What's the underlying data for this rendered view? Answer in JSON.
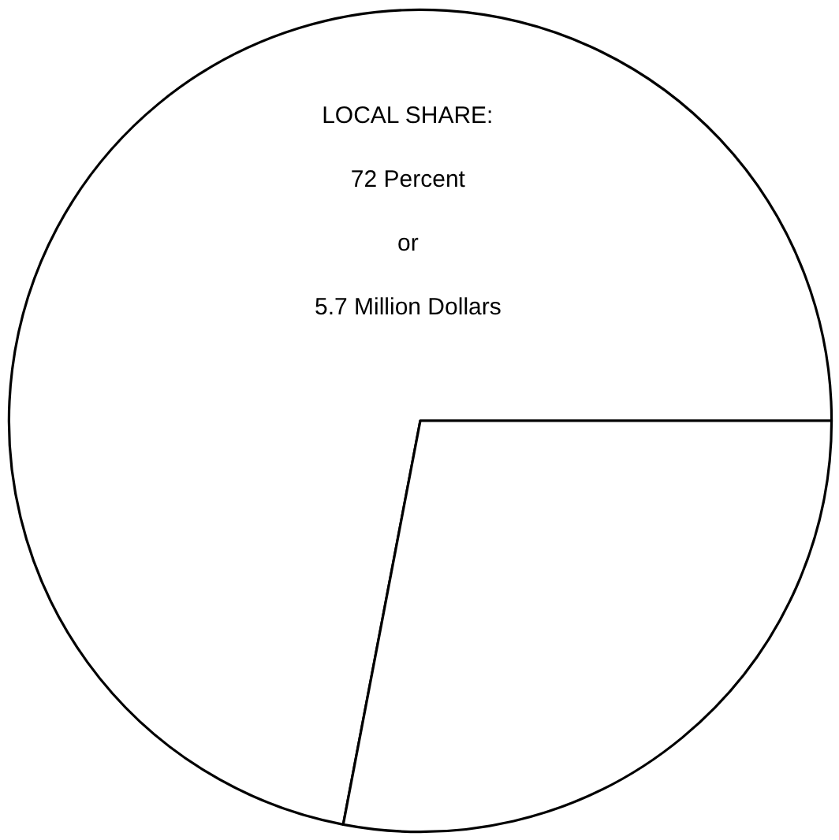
{
  "chart_data": {
    "type": "pie",
    "categories": [
      null,
      null
    ],
    "values": [
      72,
      28
    ],
    "colors": [
      "#ffffff",
      "#ffffff"
    ],
    "value_labels": [
      "72 Percent",
      null
    ],
    "annotations": [
      "LOCAL SHARE:",
      "or",
      "5.7 Million Dollars"
    ]
  }
}
